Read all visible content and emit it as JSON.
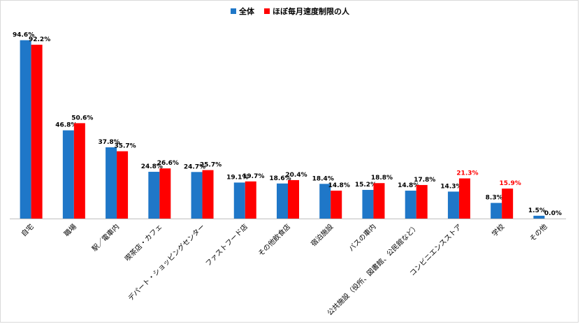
{
  "chart_data": {
    "type": "bar",
    "title": "",
    "xlabel": "",
    "ylabel": "",
    "ylim": [
      0,
      100
    ],
    "grid": false,
    "legend_position": "top-center",
    "categories": [
      "自宅",
      "職場",
      "駅／電車内",
      "喫茶店・カフェ",
      "デパート・ショッピングセンター",
      "ファストフード店",
      "その他飲食店",
      "宿泊施設",
      "バスの車内",
      "公共施設（役所、図書館、公民館など）",
      "コンビニエンスストア",
      "学校",
      "その他"
    ],
    "series": [
      {
        "name": "全体",
        "color": "#1f77c8",
        "values": [
          94.6,
          46.8,
          37.8,
          24.8,
          24.7,
          19.1,
          18.6,
          18.4,
          15.2,
          14.8,
          14.3,
          8.3,
          1.5
        ],
        "labels": [
          "94.6%",
          "46.8%",
          "37.8%",
          "24.8%",
          "24.7%",
          "19.1%",
          "18.6%",
          "18.4%",
          "15.2%",
          "14.8%",
          "14.3%",
          "8.3%",
          "1.5%"
        ]
      },
      {
        "name": "ほぼ毎月速度制限の人",
        "color": "#ff0000",
        "values": [
          92.2,
          50.6,
          35.7,
          26.6,
          25.7,
          19.7,
          20.4,
          14.8,
          18.8,
          17.8,
          21.3,
          15.9,
          0.0
        ],
        "labels": [
          "92.2%",
          "50.6%",
          "35.7%",
          "26.6%",
          "25.7%",
          "19.7%",
          "20.4%",
          "14.8%",
          "18.8%",
          "17.8%",
          "21.3%",
          "15.9%",
          "0.0%"
        ],
        "highlighted_label_indices": [
          10,
          11
        ],
        "highlight_color": "#ff0000"
      }
    ]
  }
}
